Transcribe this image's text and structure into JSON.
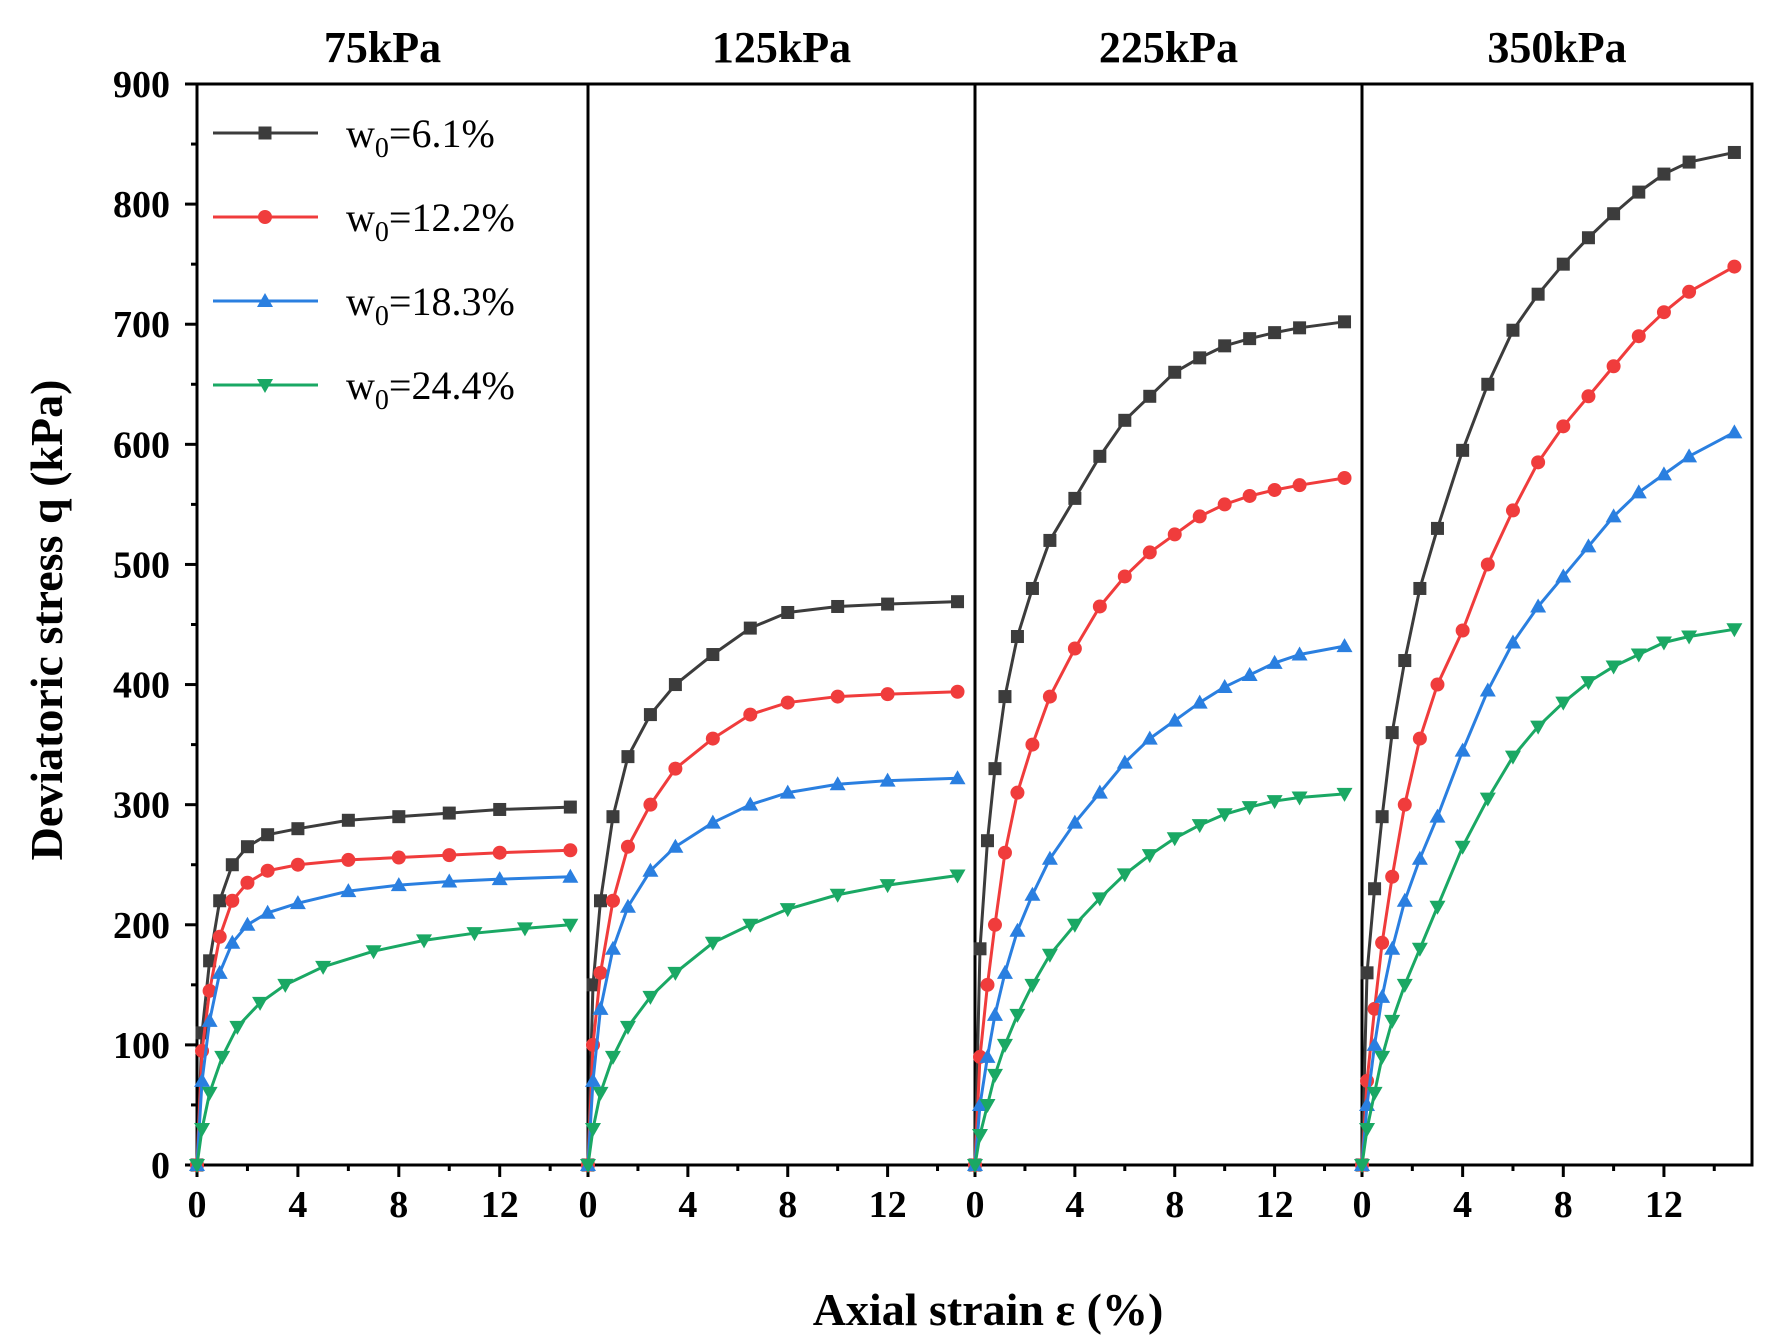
{
  "chart_data": {
    "type": "line",
    "xlabel": "Axial strain ε (%)",
    "ylabel": "Deviatoric stress q (kPa)",
    "ylim": [
      0,
      900
    ],
    "yticks": [
      0,
      100,
      200,
      300,
      400,
      500,
      600,
      700,
      800,
      900
    ],
    "xticks": [
      0,
      4,
      8,
      12
    ],
    "legend": {
      "placement": "top-left",
      "entries": [
        {
          "prefix": "w",
          "sub": "0",
          "suffix": "=6.1%",
          "color": "#3c3c3c",
          "marker": "square"
        },
        {
          "prefix": "w",
          "sub": "0",
          "suffix": "=12.2%",
          "color": "#f03c3c",
          "marker": "circle"
        },
        {
          "prefix": "w",
          "sub": "0",
          "suffix": "=18.3%",
          "color": "#2a7fe0",
          "marker": "triangle-up"
        },
        {
          "prefix": "w",
          "sub": "0",
          "suffix": "=24.4%",
          "color": "#1aa864",
          "marker": "triangle-down"
        }
      ]
    },
    "panels": [
      {
        "title": "75kPa",
        "xlim": [
          0,
          15.5
        ],
        "series": [
          {
            "name": "w0=6.1%",
            "x": [
              0,
              0.2,
              0.5,
              0.9,
              1.4,
              2,
              2.8,
              4,
              6,
              8,
              10,
              12,
              14.8
            ],
            "y": [
              0,
              110,
              170,
              220,
              250,
              265,
              275,
              280,
              287,
              290,
              293,
              296,
              298
            ]
          },
          {
            "name": "w0=12.2%",
            "x": [
              0,
              0.2,
              0.5,
              0.9,
              1.4,
              2,
              2.8,
              4,
              6,
              8,
              10,
              12,
              14.8
            ],
            "y": [
              0,
              95,
              145,
              190,
              220,
              235,
              245,
              250,
              254,
              256,
              258,
              260,
              262
            ]
          },
          {
            "name": "w0=18.3%",
            "x": [
              0,
              0.2,
              0.5,
              0.9,
              1.4,
              2,
              2.8,
              4,
              6,
              8,
              10,
              12,
              14.8
            ],
            "y": [
              0,
              70,
              120,
              160,
              185,
              200,
              210,
              218,
              228,
              233,
              236,
              238,
              240
            ]
          },
          {
            "name": "w0=24.4%",
            "x": [
              0,
              0.2,
              0.5,
              1,
              1.6,
              2.5,
              3.5,
              5,
              7,
              9,
              11,
              13,
              14.8
            ],
            "y": [
              0,
              30,
              60,
              90,
              115,
              135,
              150,
              165,
              178,
              187,
              193,
              197,
              200
            ]
          }
        ]
      },
      {
        "title": "125kPa",
        "xlim": [
          0,
          15.5
        ],
        "series": [
          {
            "name": "w0=6.1%",
            "x": [
              0,
              0.2,
              0.5,
              1,
              1.6,
              2.5,
              3.5,
              5,
              6.5,
              8,
              10,
              12,
              14.8
            ],
            "y": [
              0,
              150,
              220,
              290,
              340,
              375,
              400,
              425,
              447,
              460,
              465,
              467,
              469
            ]
          },
          {
            "name": "w0=12.2%",
            "x": [
              0,
              0.2,
              0.5,
              1,
              1.6,
              2.5,
              3.5,
              5,
              6.5,
              8,
              10,
              12,
              14.8
            ],
            "y": [
              0,
              100,
              160,
              220,
              265,
              300,
              330,
              355,
              375,
              385,
              390,
              392,
              394
            ]
          },
          {
            "name": "w0=18.3%",
            "x": [
              0,
              0.2,
              0.5,
              1,
              1.6,
              2.5,
              3.5,
              5,
              6.5,
              8,
              10,
              12,
              14.8
            ],
            "y": [
              0,
              70,
              130,
              180,
              215,
              245,
              265,
              285,
              300,
              310,
              317,
              320,
              322
            ]
          },
          {
            "name": "w0=24.4%",
            "x": [
              0,
              0.2,
              0.5,
              1,
              1.6,
              2.5,
              3.5,
              5,
              6.5,
              8,
              10,
              12,
              14.8
            ],
            "y": [
              0,
              30,
              60,
              90,
              115,
              140,
              160,
              185,
              200,
              213,
              225,
              233,
              241
            ]
          }
        ]
      },
      {
        "title": "225kPa",
        "xlim": [
          0,
          15.5
        ],
        "series": [
          {
            "name": "w0=6.1%",
            "x": [
              0,
              0.2,
              0.5,
              0.8,
              1.2,
              1.7,
              2.3,
              3,
              4,
              5,
              6,
              7,
              8,
              9,
              10,
              11,
              12,
              13,
              14.8
            ],
            "y": [
              0,
              180,
              270,
              330,
              390,
              440,
              480,
              520,
              555,
              590,
              620,
              640,
              660,
              672,
              682,
              688,
              693,
              697,
              702
            ]
          },
          {
            "name": "w0=12.2%",
            "x": [
              0,
              0.2,
              0.5,
              0.8,
              1.2,
              1.7,
              2.3,
              3,
              4,
              5,
              6,
              7,
              8,
              9,
              10,
              11,
              12,
              13,
              14.8
            ],
            "y": [
              0,
              90,
              150,
              200,
              260,
              310,
              350,
              390,
              430,
              465,
              490,
              510,
              525,
              540,
              550,
              557,
              562,
              566,
              572
            ]
          },
          {
            "name": "w0=18.3%",
            "x": [
              0,
              0.2,
              0.5,
              0.8,
              1.2,
              1.7,
              2.3,
              3,
              4,
              5,
              6,
              7,
              8,
              9,
              10,
              11,
              12,
              13,
              14.8
            ],
            "y": [
              0,
              50,
              90,
              125,
              160,
              195,
              225,
              255,
              285,
              310,
              335,
              355,
              370,
              385,
              398,
              408,
              418,
              425,
              432
            ]
          },
          {
            "name": "w0=24.4%",
            "x": [
              0,
              0.2,
              0.5,
              0.8,
              1.2,
              1.7,
              2.3,
              3,
              4,
              5,
              6,
              7,
              8,
              9,
              10,
              11,
              12,
              13,
              14.8
            ],
            "y": [
              0,
              25,
              50,
              75,
              100,
              125,
              150,
              175,
              200,
              222,
              242,
              258,
              272,
              283,
              292,
              298,
              303,
              306,
              309
            ]
          }
        ]
      },
      {
        "title": "350kPa",
        "xlim": [
          0,
          15.5
        ],
        "series": [
          {
            "name": "w0=6.1%",
            "x": [
              0,
              0.2,
              0.5,
              0.8,
              1.2,
              1.7,
              2.3,
              3,
              4,
              5,
              6,
              7,
              8,
              9,
              10,
              11,
              12,
              13,
              14.8
            ],
            "y": [
              0,
              160,
              230,
              290,
              360,
              420,
              480,
              530,
              595,
              650,
              695,
              725,
              750,
              772,
              792,
              810,
              825,
              835,
              843
            ]
          },
          {
            "name": "w0=12.2%",
            "x": [
              0,
              0.2,
              0.5,
              0.8,
              1.2,
              1.7,
              2.3,
              3,
              4,
              5,
              6,
              7,
              8,
              9,
              10,
              11,
              12,
              13,
              14.8
            ],
            "y": [
              0,
              70,
              130,
              185,
              240,
              300,
              355,
              400,
              445,
              500,
              545,
              585,
              615,
              640,
              665,
              690,
              710,
              727,
              748
            ]
          },
          {
            "name": "w0=18.3%",
            "x": [
              0,
              0.2,
              0.5,
              0.8,
              1.2,
              1.7,
              2.3,
              3,
              4,
              5,
              6,
              7,
              8,
              9,
              10,
              11,
              12,
              13,
              14.8
            ],
            "y": [
              0,
              50,
              100,
              140,
              180,
              220,
              255,
              290,
              345,
              395,
              435,
              465,
              490,
              515,
              540,
              560,
              575,
              590,
              610
            ]
          },
          {
            "name": "w0=24.4%",
            "x": [
              0,
              0.2,
              0.5,
              0.8,
              1.2,
              1.7,
              2.3,
              3,
              4,
              5,
              6,
              7,
              8,
              9,
              10,
              11,
              12,
              13,
              14.8
            ],
            "y": [
              0,
              30,
              60,
              90,
              120,
              150,
              180,
              215,
              265,
              305,
              340,
              365,
              385,
              402,
              415,
              425,
              435,
              440,
              446
            ]
          }
        ]
      }
    ]
  }
}
